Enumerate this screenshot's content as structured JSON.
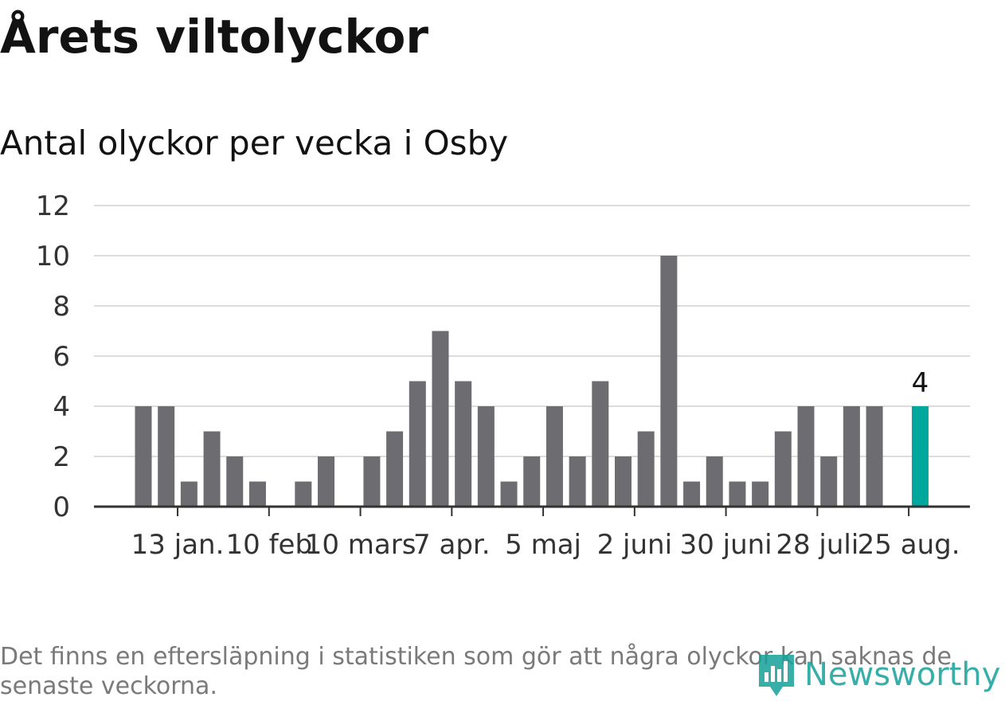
{
  "title": "Årets viltolyckor",
  "subtitle": "Antal olyckor per vecka i Osby",
  "footnote": "Det finns en eftersläpning i statistiken som gör att några olyckor kan saknas de senaste veckorna.",
  "brand": "Newsworthy",
  "colors": {
    "bar": "#6d6c71",
    "highlight": "#00a79d",
    "grid": "#dcdcdc",
    "axis": "#333333",
    "text": "#121212",
    "muted": "#7a7a7a"
  },
  "chart_data": {
    "type": "bar",
    "values": [
      4,
      4,
      1,
      3,
      2,
      1,
      0,
      1,
      2,
      0,
      2,
      3,
      5,
      7,
      5,
      4,
      1,
      2,
      4,
      2,
      5,
      2,
      3,
      10,
      1,
      2,
      1,
      1,
      3,
      4,
      2,
      4,
      4,
      0,
      4
    ],
    "highlight_index": 34,
    "highlight_label": "4",
    "ylim": [
      0,
      12
    ],
    "yticks": [
      0,
      2,
      4,
      6,
      8,
      10,
      12
    ],
    "xtick_labels": [
      "13 jan.",
      "10 feb",
      "10 mars",
      "7 apr.",
      "5 maj",
      "2 juni",
      "30 juni",
      "28 juli",
      "25 aug."
    ],
    "xtick_positions": [
      1.5,
      5.5,
      9.5,
      13.5,
      17.5,
      21.5,
      25.5,
      29.5,
      33.5
    ],
    "grid": true
  }
}
